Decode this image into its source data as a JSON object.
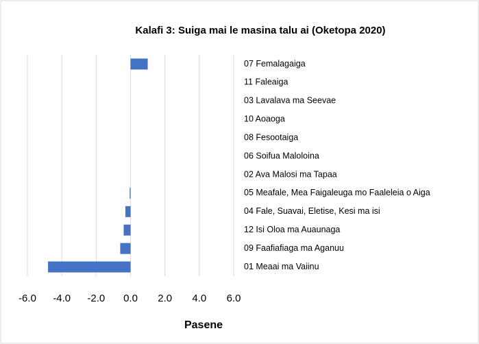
{
  "chart_data": {
    "type": "hbar",
    "title": "Kalafi 3: Suiga mai le masina talu ai (Oketopa 2020)",
    "xlabel": "Pasene",
    "categories": [
      "07 Femalagaiga",
      "11 Faleaiga",
      "03 Lavalava ma Seevae",
      "10 Aoaoga",
      "08 Fesootaiga",
      "06 Soifua Maloloina",
      "02 Ava Malosi ma Tapaa",
      "05 Meafale, Mea Faigaleuga mo Faaleleia o Aiga",
      "04 Fale, Suavai, Eletise, Kesi ma isi",
      "12 Isi Oloa ma Auaunaga",
      "09 Faafiafiaga ma Aganuu",
      "01 Meaai ma Vaiinu"
    ],
    "values": [
      1.0,
      0,
      0,
      0,
      0,
      0,
      0,
      -0.05,
      -0.3,
      -0.4,
      -0.6,
      -4.8
    ],
    "color": "#4472c4",
    "xlim": [
      -6,
      6
    ],
    "xticks": [
      {
        "value": -6,
        "label": "-6.0"
      },
      {
        "value": -4,
        "label": "-4.0"
      },
      {
        "value": -2,
        "label": "-2.0"
      },
      {
        "value": 0,
        "label": "0.0"
      },
      {
        "value": 2,
        "label": "2.0"
      },
      {
        "value": 4,
        "label": "4.0"
      },
      {
        "value": 6,
        "label": "6.0"
      }
    ],
    "grid": true
  }
}
